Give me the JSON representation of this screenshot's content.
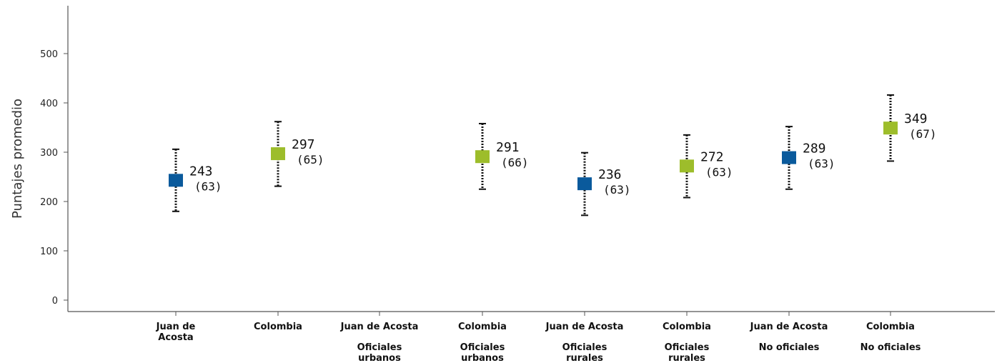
{
  "chart_data": {
    "type": "scatter",
    "ylabel": "Puntajes promedio",
    "ylim": [
      0,
      500
    ],
    "yticks": [
      0,
      100,
      200,
      300,
      400,
      500
    ],
    "grid": false,
    "colors": {
      "Juan de Acosta": "#0a5a9c",
      "Colombia": "#9dbd2b"
    },
    "points": [
      {
        "category": "Juan de Acosta",
        "lines": [
          "Juan de",
          "Acosta"
        ],
        "group_lines": [],
        "mean": 243,
        "se_label": "(63)",
        "low": 180,
        "high": 306,
        "color": "#0a5a9c"
      },
      {
        "category": "Colombia",
        "lines": [
          "Colombia"
        ],
        "group_lines": [],
        "mean": 297,
        "se_label": "(65)",
        "low": 231,
        "high": 362,
        "color": "#9dbd2b"
      },
      {
        "category": "Juan de Acosta",
        "lines": [
          "Juan de Acosta"
        ],
        "group_lines": [
          "Oficiales",
          "urbanos"
        ],
        "mean": null,
        "se_label": "",
        "low": null,
        "high": null,
        "color": "#0a5a9c"
      },
      {
        "category": "Colombia",
        "lines": [
          "Colombia"
        ],
        "group_lines": [
          "Oficiales",
          "urbanos"
        ],
        "mean": 291,
        "se_label": "(66)",
        "low": 225,
        "high": 358,
        "color": "#9dbd2b"
      },
      {
        "category": "Juan de Acosta",
        "lines": [
          "Juan de Acosta"
        ],
        "group_lines": [
          "Oficiales",
          "rurales"
        ],
        "mean": 236,
        "se_label": "(63)",
        "low": 172,
        "high": 299,
        "color": "#0a5a9c"
      },
      {
        "category": "Colombia",
        "lines": [
          "Colombia"
        ],
        "group_lines": [
          "Oficiales",
          "rurales"
        ],
        "mean": 272,
        "se_label": "(63)",
        "low": 208,
        "high": 335,
        "color": "#9dbd2b"
      },
      {
        "category": "Juan de Acosta",
        "lines": [
          "Juan de Acosta"
        ],
        "group_lines": [
          "No oficiales"
        ],
        "mean": 289,
        "se_label": "(63)",
        "low": 225,
        "high": 352,
        "color": "#0a5a9c"
      },
      {
        "category": "Colombia",
        "lines": [
          "Colombia"
        ],
        "group_lines": [
          "No oficiales"
        ],
        "mean": 349,
        "se_label": "(67)",
        "low": 282,
        "high": 416,
        "color": "#9dbd2b"
      }
    ]
  }
}
